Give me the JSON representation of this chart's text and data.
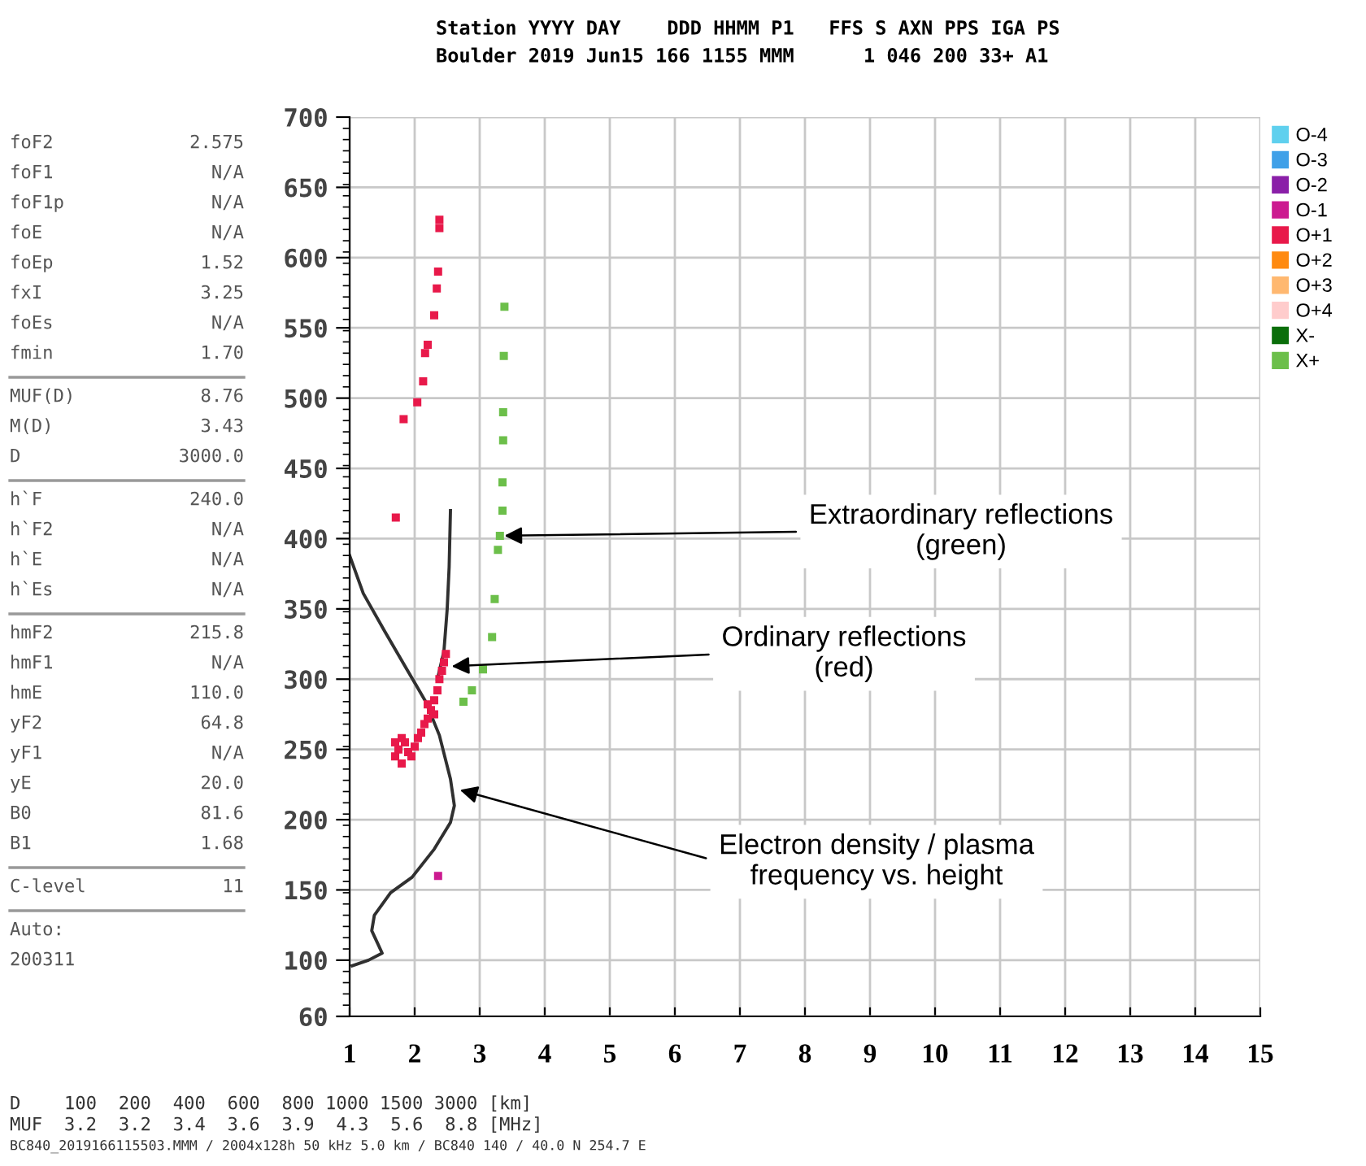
{
  "chart_data": {
    "type": "scatter",
    "xlim": [
      1,
      15
    ],
    "xticks": [
      1,
      2,
      3,
      4,
      5,
      6,
      7,
      8,
      9,
      10,
      11,
      12,
      13,
      14,
      15
    ],
    "ylim": [
      60,
      700
    ],
    "yticks": [
      60,
      100,
      150,
      200,
      250,
      300,
      350,
      400,
      450,
      500,
      550,
      600,
      650,
      700
    ],
    "grid": true,
    "legend": "right",
    "marker": "square",
    "series": [
      {
        "name": "O-4",
        "color": "#5fd0ee"
      },
      {
        "name": "O-3",
        "color": "#3fa0e8"
      },
      {
        "name": "O-2",
        "color": "#8a1fa8"
      },
      {
        "name": "O-1",
        "color": "#cc1a90",
        "x": [
          2.36
        ],
        "values": [
          160
        ]
      },
      {
        "name": "O+1",
        "color": "#e8194a",
        "x": [
          1.7,
          1.75,
          1.8,
          1.85,
          1.9,
          1.95,
          1.8,
          1.7,
          2.0,
          2.05,
          2.1,
          2.15,
          2.2,
          2.25,
          2.3,
          2.35,
          2.38,
          2.42,
          2.45,
          2.48,
          2.2,
          2.3,
          1.83,
          2.04,
          2.13,
          2.16,
          2.2,
          2.3,
          2.34,
          2.36,
          2.38,
          2.38,
          1.71
        ],
        "values": [
          245,
          250,
          240,
          255,
          248,
          245,
          258,
          255,
          252,
          258,
          262,
          268,
          272,
          278,
          285,
          292,
          300,
          306,
          312,
          318,
          282,
          275,
          485,
          497,
          512,
          532,
          538,
          559,
          578,
          590,
          621,
          627,
          415
        ]
      },
      {
        "name": "O+2",
        "color": "#ff8a10"
      },
      {
        "name": "O+3",
        "color": "#ffb870"
      },
      {
        "name": "O+4",
        "color": "#ffcccc"
      },
      {
        "name": "X-",
        "color": "#0a6e0a"
      },
      {
        "name": "X+",
        "color": "#6cbf4a",
        "x": [
          2.75,
          2.88,
          3.05,
          3.19,
          3.23,
          3.28,
          3.31,
          3.35,
          3.35,
          3.36,
          3.36,
          3.37,
          3.38
        ],
        "values": [
          284,
          292,
          307,
          330,
          357,
          392,
          402,
          420,
          440,
          470,
          490,
          530,
          565
        ]
      },
      {
        "type": "line",
        "marker": "none",
        "color": "#303030",
        "x": [
          1.0,
          1.21,
          1.54,
          1.88,
          2.17,
          2.38,
          2.55,
          2.61,
          2.55,
          2.3,
          1.96,
          1.63,
          1.38,
          1.34,
          1.42,
          1.5,
          1.29,
          1.04
        ],
        "values": [
          388,
          361,
          334,
          307,
          284,
          260,
          229,
          210,
          198,
          179,
          159,
          148,
          132,
          121,
          113,
          105,
          100,
          96
        ]
      },
      {
        "type": "line",
        "marker": "none",
        "color": "#303030",
        "x": [
          2.35,
          2.45,
          2.5,
          2.53,
          2.55
        ],
        "values": [
          300,
          320,
          350,
          380,
          420
        ]
      }
    ],
    "annotations": [
      "Station YYYY DAY    DDD HHMM P1   FFS S AXN PPS IGA PS",
      "Boulder 2019 Jun15 166 1155 MMM      1 046 200 33+ A1",
      "foF2\t2.575",
      "foF1\tN/A",
      "foF1p\tN/A",
      "foE\tN/A",
      "foEp\t1.52",
      "fxI\t3.25",
      "foEs\tN/A",
      "fmin\t1.70",
      "MUF(D)\t8.76",
      "M(D)\t3.43",
      "D\t3000.0",
      "h`F\t240.0",
      "h`F2\tN/A",
      "h`E\tN/A",
      "h`Es\tN/A",
      "hmF2\t215.8",
      "hmF1\tN/A",
      "hmE\t110.0",
      "yF2\t64.8",
      "yF1\tN/A",
      "yE\t20.0",
      "B0\t81.6",
      "B1\t1.68",
      "C-level\t11",
      "Auto:",
      "200311",
      "D    100  200  400  600  800 1000 1500 3000 [km]",
      "MUF  3.2  3.2  3.4  3.6  3.9  4.3  5.6  8.8 [MHz]",
      "BC840_2019166115503.MMM / 2004x128h 50 kHz 5.0 km / BC840 140 / 40.0 N 254.7 E",
      {
        "text": "Extraordinary reflections\n(green)",
        "x": 3.31,
        "y": 402
      },
      {
        "text": "Ordinary reflections\n(red)",
        "x": 2.5,
        "y": 309
      },
      {
        "text": "Electron density / plasma\nfrequency vs. height",
        "x": 2.63,
        "y": 222
      }
    ]
  }
}
